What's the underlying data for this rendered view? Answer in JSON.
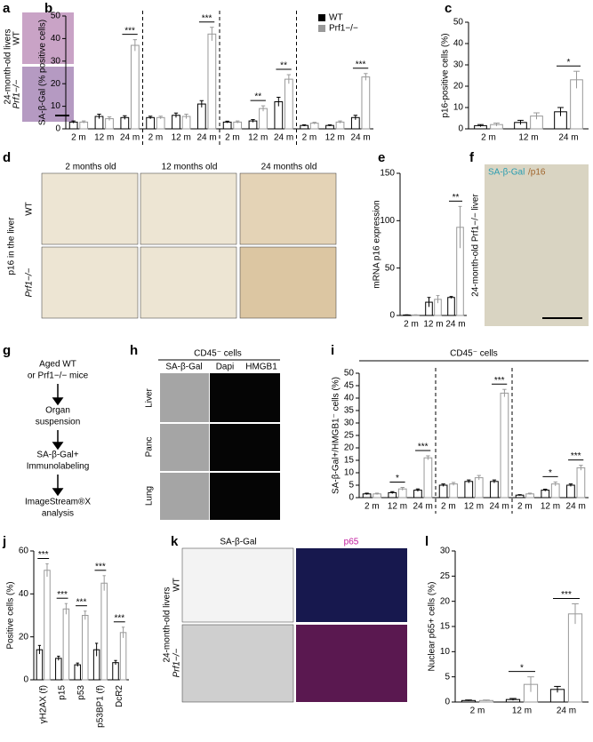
{
  "panel_labels": [
    "a",
    "b",
    "c",
    "d",
    "e",
    "f",
    "g",
    "h",
    "i",
    "j",
    "k",
    "l"
  ],
  "panel_a": {
    "side_label": "24-month-old livers",
    "rows": [
      "WT",
      "Prf1−/−"
    ]
  },
  "panel_d": {
    "columns": [
      "2 months old",
      "12 months old",
      "24 months old"
    ],
    "side_label": "p16 in the liver",
    "rows": [
      "WT",
      "Prf1−/−"
    ]
  },
  "panel_f": {
    "stain": [
      "SA-β-Gal",
      "/p16"
    ],
    "side_label": "24-month-old Prf1−/− liver"
  },
  "panel_g": {
    "steps": [
      [
        "Aged WT",
        "or Prf1−/− mice"
      ],
      [
        "Organ",
        "suspension"
      ],
      [
        "SA-β-Gal+",
        "Immunolabeling"
      ],
      [
        "ImageStream®X",
        "analysis"
      ]
    ]
  },
  "panel_h": {
    "title": "CD45⁻ cells",
    "columns": [
      "SA-β-Gal",
      "Dapi",
      "HMGB1"
    ],
    "rows": [
      "Liver",
      "Panc",
      "Lung"
    ]
  },
  "panel_k": {
    "columns": [
      "SA-β-Gal",
      "p65"
    ],
    "side_label": "24-month-old livers",
    "rows": [
      "WT",
      "Prf1−/−"
    ]
  },
  "chart_data": [
    {
      "type": "bar",
      "ylabel": "SA-β-Gal (% positive cells)",
      "ylim": [
        0,
        50
      ],
      "yticks": [
        0,
        10,
        20,
        30,
        40,
        50
      ],
      "legend": "upper right",
      "categories": [
        "2 m",
        "12 m",
        "24 m",
        "2 m",
        "12 m",
        "24 m",
        "2 m",
        "12 m",
        "24 m",
        "2 m",
        "12 m",
        "24 m"
      ],
      "series": [
        {
          "name": "WT",
          "color": "#000000",
          "values": [
            3,
            5.5,
            5,
            5,
            6,
            11,
            3,
            3.5,
            12,
            1.5,
            1.5,
            5
          ],
          "errors": [
            0.5,
            1,
            0.8,
            0.6,
            1,
            1.5,
            0.4,
            0.6,
            2,
            0.3,
            0.3,
            1
          ]
        },
        {
          "name": "Prf1−/−",
          "color": "#999999",
          "values": [
            3,
            4.5,
            37,
            5,
            5.5,
            42,
            3,
            9,
            22,
            2.5,
            3,
            23
          ],
          "errors": [
            0.5,
            0.8,
            2.5,
            0.6,
            1,
            3,
            0.5,
            1.2,
            2,
            0.4,
            0.5,
            1.5
          ]
        }
      ],
      "annotations": [
        null,
        null,
        "***",
        null,
        null,
        "***",
        null,
        "**",
        "**",
        null,
        null,
        "***"
      ]
    },
    {
      "type": "bar",
      "ylabel": "p16-positive cells (%)",
      "ylim": [
        0,
        50
      ],
      "yticks": [
        0,
        10,
        20,
        30,
        40,
        50
      ],
      "categories": [
        "2 m",
        "12 m",
        "24 m"
      ],
      "series": [
        {
          "color": "#000000",
          "values": [
            1.5,
            3,
            8
          ],
          "errors": [
            0.5,
            1,
            2
          ]
        },
        {
          "color": "#999999",
          "values": [
            2,
            6,
            23
          ],
          "errors": [
            0.7,
            1.5,
            4
          ]
        }
      ],
      "annotations": [
        null,
        null,
        "*"
      ]
    },
    {
      "type": "bar",
      "ylabel": "mRNA p16 expression",
      "ylim": [
        0,
        150
      ],
      "yticks": [
        0,
        50,
        100,
        150
      ],
      "categories": [
        "2 m",
        "12 m",
        "24 m"
      ],
      "series": [
        {
          "color": "#000000",
          "values": [
            0.5,
            14,
            19
          ],
          "errors": [
            0.2,
            5,
            1
          ]
        },
        {
          "color": "#999999",
          "values": [
            0.5,
            17,
            93
          ],
          "errors": [
            0.2,
            4,
            22
          ]
        }
      ],
      "annotations": [
        null,
        null,
        "**"
      ]
    },
    {
      "type": "bar",
      "title": "CD45⁻ cells",
      "ylabel": "SA-β-Gal+/HMGB1⁻ cells (%)",
      "ylim": [
        0,
        50
      ],
      "yticks": [
        0,
        5,
        10,
        15,
        20,
        25,
        30,
        35,
        40,
        45,
        50
      ],
      "categories": [
        "2 m",
        "12 m",
        "24 m",
        "2 m",
        "12 m",
        "24 m",
        "2 m",
        "12 m",
        "24 m"
      ],
      "series": [
        {
          "color": "#000000",
          "values": [
            1.5,
            2,
            3,
            5,
            6.5,
            6.5,
            1,
            3,
            5
          ],
          "errors": [
            0.3,
            0.4,
            0.5,
            0.5,
            0.6,
            0.6,
            0.2,
            0.4,
            0.5
          ]
        },
        {
          "color": "#999999",
          "values": [
            1.5,
            3.5,
            16,
            5.5,
            8,
            42,
            1.5,
            5.5,
            12
          ],
          "errors": [
            0.3,
            0.6,
            0.8,
            0.6,
            0.9,
            1.5,
            0.3,
            0.8,
            1
          ]
        }
      ],
      "annotations": [
        null,
        "*",
        "***",
        null,
        null,
        "***",
        null,
        "*",
        "***"
      ]
    },
    {
      "type": "bar",
      "ylabel": "Positive cells (%)",
      "ylim": [
        0,
        60
      ],
      "yticks": [
        0,
        20,
        40,
        60
      ],
      "categories": [
        "γH2AX (f)",
        "p15",
        "p53",
        "p53BP1 (f)",
        "DcR2"
      ],
      "series": [
        {
          "color": "#000000",
          "values": [
            14,
            10,
            7,
            14,
            8
          ],
          "errors": [
            2,
            1,
            0.8,
            3,
            1
          ]
        },
        {
          "color": "#999999",
          "values": [
            51,
            33,
            30,
            45,
            22
          ],
          "errors": [
            3,
            2.5,
            2,
            3.5,
            2.5
          ]
        }
      ],
      "annotations": [
        "***",
        "***",
        "***",
        "***",
        "***"
      ]
    },
    {
      "type": "bar",
      "ylabel": "Nuclear p65+ cells (%)",
      "ylim": [
        0,
        30
      ],
      "yticks": [
        0,
        5,
        10,
        15,
        20,
        25,
        30
      ],
      "categories": [
        "2 m",
        "12 m",
        "24 m"
      ],
      "series": [
        {
          "color": "#000000",
          "values": [
            0.3,
            0.5,
            2.5
          ],
          "errors": [
            0.1,
            0.2,
            0.6
          ]
        },
        {
          "color": "#999999",
          "values": [
            0.3,
            3.5,
            17.5
          ],
          "errors": [
            0.1,
            1.5,
            2
          ]
        }
      ],
      "annotations": [
        null,
        "*",
        "***"
      ]
    }
  ]
}
